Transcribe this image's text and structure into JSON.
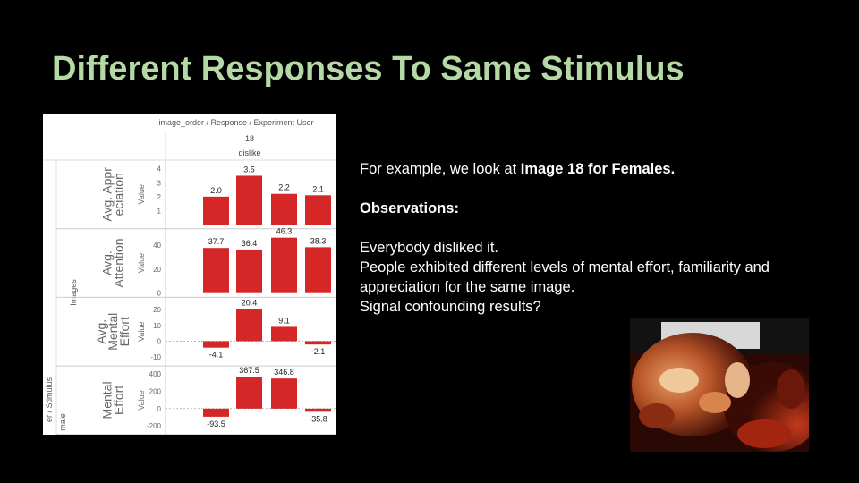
{
  "slide": {
    "title": "Different Responses To Same Stimulus"
  },
  "text": {
    "intro_prefix": "For example, we look at ",
    "intro_bold": "Image 18 for Females.",
    "observations_heading": "Observations:",
    "line1": "Everybody disliked it.",
    "line2": "People exhibited different levels of mental effort, familiarity and appreciation for the same image.",
    "line3": "Signal confounding results?"
  },
  "photo": {
    "description_icon": "photo-icon"
  },
  "chart_data": {
    "type": "bar",
    "header": "image_order  /  Response  /  Experiment User",
    "column_value": "18",
    "column_response": "dislike",
    "row_group_label": "Images",
    "row_outer_label": "er  /  Stimulus",
    "row_outer_sub": "male",
    "value_label": "Value",
    "bar_color": "#d62728",
    "panels": [
      {
        "label_lines": [
          "Avg. Appr",
          "eciation"
        ],
        "values": [
          2.0,
          3.5,
          2.2,
          2.1
        ],
        "data_labels": [
          "2.0",
          "3.5",
          "2.2",
          "2.1"
        ],
        "ylim": [
          0,
          4.3
        ],
        "ticks": [
          1,
          2,
          3,
          4
        ],
        "tick_labels": [
          "1",
          "2",
          "3",
          "4"
        ]
      },
      {
        "label_lines": [
          "Avg.",
          "Attention"
        ],
        "values": [
          37.7,
          36.4,
          46.3,
          38.3
        ],
        "data_labels": [
          "37.7",
          "36.4",
          "46.3",
          "38.3"
        ],
        "ylim": [
          0,
          50
        ],
        "ticks": [
          0,
          20,
          40
        ],
        "tick_labels": [
          "0",
          "20",
          "40"
        ]
      },
      {
        "label_lines": [
          "Avg.",
          "Mental",
          "Effort"
        ],
        "values": [
          -4.1,
          20.4,
          9.1,
          -2.1
        ],
        "data_labels": [
          "-4.1",
          "20.4",
          "9.1",
          "-2.1"
        ],
        "ylim": [
          -13,
          25
        ],
        "ticks": [
          -10,
          0,
          10,
          20
        ],
        "tick_labels": [
          "-10",
          "0",
          "10",
          "20"
        ]
      },
      {
        "label_lines": [
          "Mental",
          "Effort"
        ],
        "values": [
          -93.5,
          367.5,
          346.8,
          -35.8
        ],
        "data_labels": [
          "-93.5",
          "367.5",
          "346.8",
          "-35.8"
        ],
        "ylim": [
          -250,
          440
        ],
        "ticks": [
          -200,
          0,
          200,
          400
        ],
        "tick_labels": [
          "-200",
          "0",
          "200",
          "400"
        ]
      }
    ]
  }
}
